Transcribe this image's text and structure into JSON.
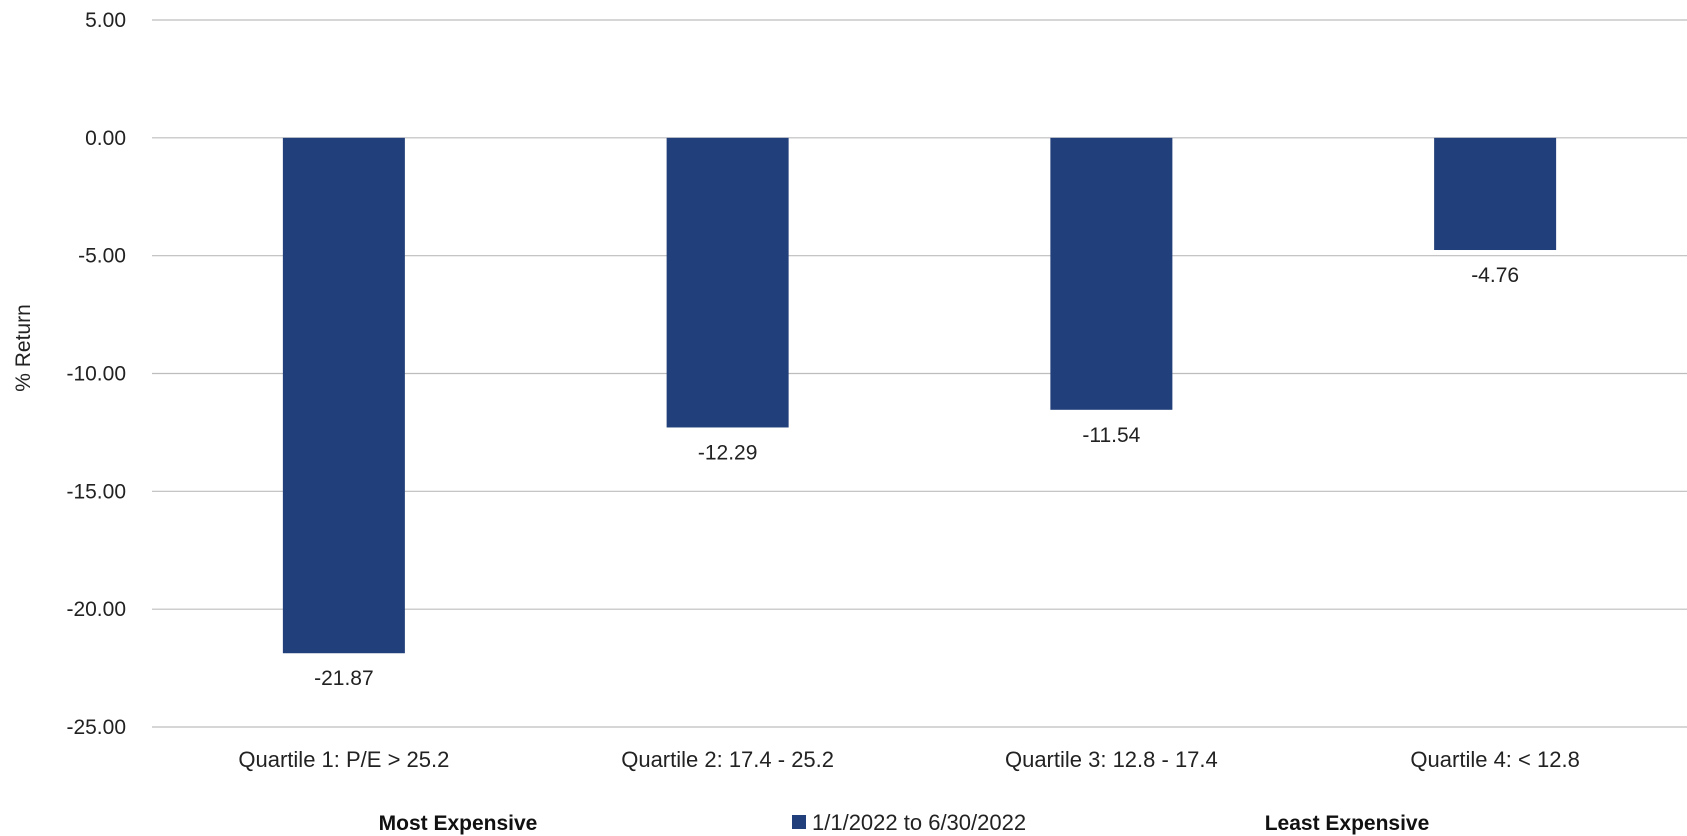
{
  "chart_data": {
    "type": "bar",
    "categories": [
      "Quartile 1: P/E > 25.2",
      "Quartile 2: 17.4 - 25.2",
      "Quartile 3: 12.8 - 17.4",
      "Quartile 4: < 12.8"
    ],
    "series": [
      {
        "name": "1/1/2022 to 6/30/2022",
        "values": [
          -21.87,
          -12.29,
          -11.54,
          -4.76
        ]
      }
    ],
    "data_labels": [
      "-21.87",
      "-12.29",
      "-11.54",
      "-4.76"
    ],
    "ylabel": "% Return",
    "ylim": [
      -25,
      5
    ],
    "yticks": [
      5,
      0,
      -5,
      -10,
      -15,
      -20,
      -25
    ],
    "ytick_labels": [
      "5.00",
      "0.00",
      "-5.00",
      "-10.00",
      "-15.00",
      "-20.00",
      "-25.00"
    ],
    "grid": true,
    "legend_position": "bottom-center",
    "annotations": {
      "left": "Most Expensive",
      "right": "Least Expensive"
    },
    "colors": {
      "bar": "#213f7a",
      "grid": "#bdbdbd"
    }
  }
}
